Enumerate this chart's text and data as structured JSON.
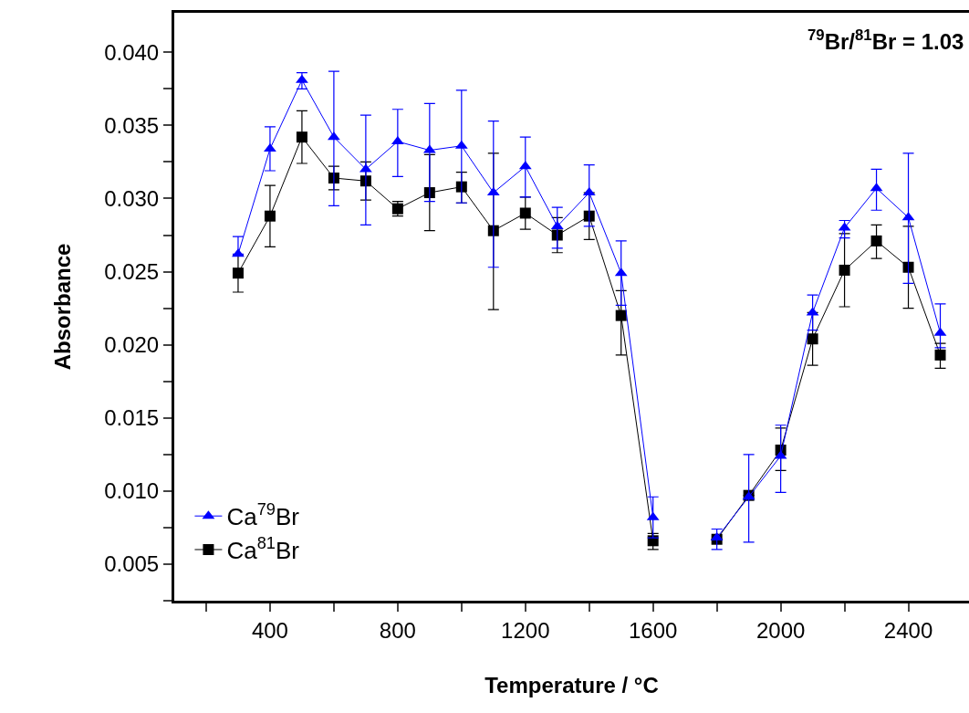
{
  "chart_data": {
    "type": "line",
    "xlabel": "Temperature / °C",
    "ylabel": "Absorbance",
    "annotations": [
      "$^{79}$Br/$^{81}$Br = 1.03"
    ],
    "x": [
      300,
      400,
      500,
      600,
      700,
      800,
      900,
      1000,
      1100,
      1200,
      1300,
      1400,
      1500,
      1600,
      1700,
      1800,
      1900,
      2000,
      2100,
      2200,
      2300,
      2400,
      2500
    ],
    "series": [
      {
        "name": "Ca$^{79}$Br",
        "color": "#0000ff",
        "marker": "triangle",
        "values": [
          0.0262,
          0.0334,
          0.0381,
          0.0342,
          0.032,
          0.0339,
          0.0333,
          0.0336,
          0.0304,
          0.0322,
          0.0281,
          0.0304,
          0.0249,
          0.0082,
          null,
          0.0068,
          0.0096,
          0.0124,
          0.0222,
          0.028,
          0.0307,
          0.0287,
          0.0208
        ],
        "errors": [
          [
            0.0262,
            0.0274
          ],
          [
            0.0319,
            0.0349
          ],
          [
            0.0375,
            0.0386
          ],
          [
            0.0295,
            0.0387
          ],
          [
            0.0282,
            0.0357
          ],
          [
            0.0315,
            0.0361
          ],
          [
            0.0298,
            0.0365
          ],
          [
            0.0297,
            0.0374
          ],
          [
            0.0253,
            0.0353
          ],
          [
            0.0301,
            0.0342
          ],
          [
            0.0266,
            0.0294
          ],
          [
            0.0281,
            0.0323
          ],
          [
            0.0227,
            0.0271
          ],
          0.0014,
          null,
          [
            0.006,
            0.0074
          ],
          [
            0.0065,
            0.0125
          ],
          [
            0.0099,
            0.0145
          ],
          [
            0.021,
            0.0234
          ],
          [
            0.0273,
            0.0285
          ],
          [
            0.0292,
            0.032
          ],
          [
            0.0242,
            0.0331
          ],
          [
            0.0198,
            0.0228
          ]
        ]
      },
      {
        "name": "Ca$^{81}$Br",
        "color": "#000000",
        "marker": "square",
        "values": [
          0.0249,
          0.0288,
          0.0342,
          0.0314,
          0.0312,
          0.0293,
          0.0304,
          0.0308,
          0.0278,
          0.029,
          0.0275,
          0.0288,
          0.022,
          0.0066,
          null,
          0.0067,
          0.0097,
          0.0128,
          0.0204,
          0.0251,
          0.0271,
          0.0253,
          0.0193
        ],
        "errors": [
          [
            0.0236,
            0.0261
          ],
          [
            0.0267,
            0.0309
          ],
          [
            0.0324,
            0.036
          ],
          [
            0.0306,
            0.0322
          ],
          [
            0.0299,
            0.0325
          ],
          [
            0.0288,
            0.0298
          ],
          [
            0.0278,
            0.033
          ],
          [
            0.0297,
            0.0318
          ],
          [
            0.0224,
            0.0331
          ],
          [
            0.0279,
            0.0301
          ],
          [
            0.0263,
            0.0287
          ],
          [
            0.0272,
            0.0304
          ],
          [
            0.0193,
            0.0237
          ],
          [
            0.006,
            0.0071
          ],
          null,
          null,
          null,
          [
            0.0114,
            0.0143
          ],
          [
            0.0186,
            0.0222
          ],
          [
            0.0226,
            0.0276
          ],
          [
            0.0259,
            0.0282
          ],
          [
            0.0225,
            0.0281
          ],
          [
            0.0184,
            0.0201
          ]
        ]
      }
    ],
    "xlim": [
      100,
      2590
    ],
    "xticks": [
      {
        "value": 200,
        "label": null
      },
      400,
      {
        "value": 600,
        "label": null
      },
      800,
      {
        "value": 1000,
        "label": null
      },
      1200,
      {
        "value": 1400,
        "label": null
      },
      1600,
      {
        "value": 1800,
        "label": null
      },
      2000,
      {
        "value": 2200,
        "label": null
      },
      2400
    ],
    "ylim": [
      0.0025,
      0.0427
    ],
    "yticks": [
      {
        "value": 0.0025,
        "label": null
      },
      {
        "value": 0.005,
        "label": "0.005"
      },
      {
        "value": 0.0075,
        "label": null
      },
      {
        "value": 0.01,
        "label": "0.010"
      },
      {
        "value": 0.0125,
        "label": null
      },
      {
        "value": 0.015,
        "label": "0.015"
      },
      {
        "value": 0.0175,
        "label": null
      },
      {
        "value": 0.02,
        "label": "0.020"
      },
      {
        "value": 0.0225,
        "label": null
      },
      {
        "value": 0.025,
        "label": "0.025"
      },
      {
        "value": 0.0275,
        "label": null
      },
      {
        "value": 0.03,
        "label": "0.030"
      },
      {
        "value": 0.0325,
        "label": null
      },
      {
        "value": 0.035,
        "label": "0.035"
      },
      {
        "value": 0.0375,
        "label": null
      },
      {
        "value": 0.04,
        "label": "0.040"
      }
    ],
    "grid": false,
    "legend": "bottom left",
    "line_style": "solid"
  }
}
